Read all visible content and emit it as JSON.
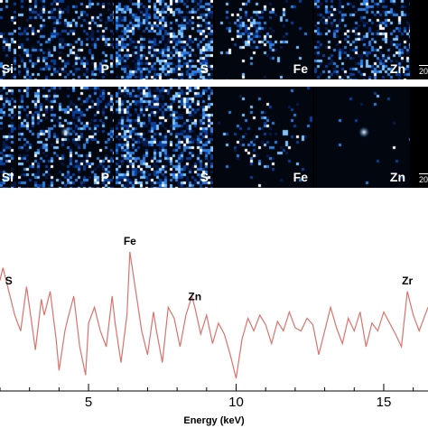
{
  "maps": {
    "top_row": {
      "panels": [
        {
          "element": "Si",
          "label": "Si",
          "pattern": "sparse"
        },
        {
          "element": "P",
          "label": "P",
          "pattern": "uniform"
        },
        {
          "element": "S",
          "label": "S",
          "pattern": "dense"
        },
        {
          "element": "Fe",
          "label": "Fe",
          "pattern": "clustered"
        },
        {
          "element": "Zn",
          "label": "Zn",
          "pattern": "uniform"
        }
      ],
      "scalebar": "20"
    },
    "bottom_row": {
      "panels": [
        {
          "element": "Si",
          "label": "Si",
          "pattern": "diffuse"
        },
        {
          "element": "P",
          "label": "P",
          "pattern": "diffuse-hotspot"
        },
        {
          "element": "S",
          "label": "S",
          "pattern": "diffuse-dense"
        },
        {
          "element": "Fe",
          "label": "Fe",
          "pattern": "faint-center"
        },
        {
          "element": "Zn",
          "label": "Zn",
          "pattern": "single-spot"
        }
      ],
      "scalebar": "20"
    },
    "colors": {
      "background": "#000000",
      "low": "#0a2a6e",
      "mid": "#2f7fe0",
      "high": "#ffffff"
    }
  },
  "chart_data": {
    "type": "line",
    "xlabel": "Energy (keV)",
    "ylabel": "",
    "xlim": [
      2,
      16.5
    ],
    "ticks": [
      5,
      10,
      15
    ],
    "grid": false,
    "line_color": "#d9736d",
    "peak_labels": [
      {
        "text": "S",
        "x": 2.3
      },
      {
        "text": "Fe",
        "x": 6.4
      },
      {
        "text": "Zn",
        "x": 8.6
      },
      {
        "text": "Zr",
        "x": 15.8
      }
    ],
    "x": [
      2.0,
      2.1,
      2.3,
      2.5,
      2.7,
      2.9,
      3.0,
      3.2,
      3.4,
      3.5,
      3.7,
      3.9,
      4.0,
      4.2,
      4.3,
      4.5,
      4.7,
      4.9,
      5.0,
      5.2,
      5.4,
      5.6,
      5.8,
      5.9,
      6.1,
      6.3,
      6.4,
      6.6,
      6.8,
      7.0,
      7.2,
      7.3,
      7.5,
      7.7,
      7.9,
      8.1,
      8.3,
      8.5,
      8.6,
      8.8,
      9.0,
      9.2,
      9.4,
      9.6,
      9.8,
      10.0,
      10.2,
      10.4,
      10.6,
      10.8,
      11.0,
      11.2,
      11.4,
      11.6,
      11.8,
      12.0,
      12.2,
      12.4,
      12.6,
      12.8,
      13.0,
      13.2,
      13.4,
      13.6,
      13.8,
      14.0,
      14.2,
      14.4,
      14.6,
      14.8,
      15.0,
      15.2,
      15.4,
      15.6,
      15.8,
      16.0,
      16.2,
      16.5
    ],
    "y": [
      0.62,
      0.7,
      0.55,
      0.4,
      0.3,
      0.58,
      0.45,
      0.18,
      0.5,
      0.4,
      0.55,
      0.25,
      0.05,
      0.3,
      0.38,
      0.52,
      0.2,
      0.02,
      0.35,
      0.45,
      0.3,
      0.2,
      0.52,
      0.35,
      0.1,
      0.4,
      0.8,
      0.55,
      0.3,
      0.15,
      0.42,
      0.3,
      0.1,
      0.45,
      0.38,
      0.2,
      0.4,
      0.52,
      0.45,
      0.28,
      0.4,
      0.22,
      0.35,
      0.28,
      0.15,
      0.0,
      0.25,
      0.38,
      0.3,
      0.4,
      0.34,
      0.22,
      0.36,
      0.3,
      0.42,
      0.32,
      0.3,
      0.38,
      0.34,
      0.15,
      0.3,
      0.45,
      0.32,
      0.22,
      0.38,
      0.3,
      0.42,
      0.2,
      0.35,
      0.3,
      0.42,
      0.35,
      0.28,
      0.2,
      0.55,
      0.4,
      0.3,
      0.45
    ]
  }
}
